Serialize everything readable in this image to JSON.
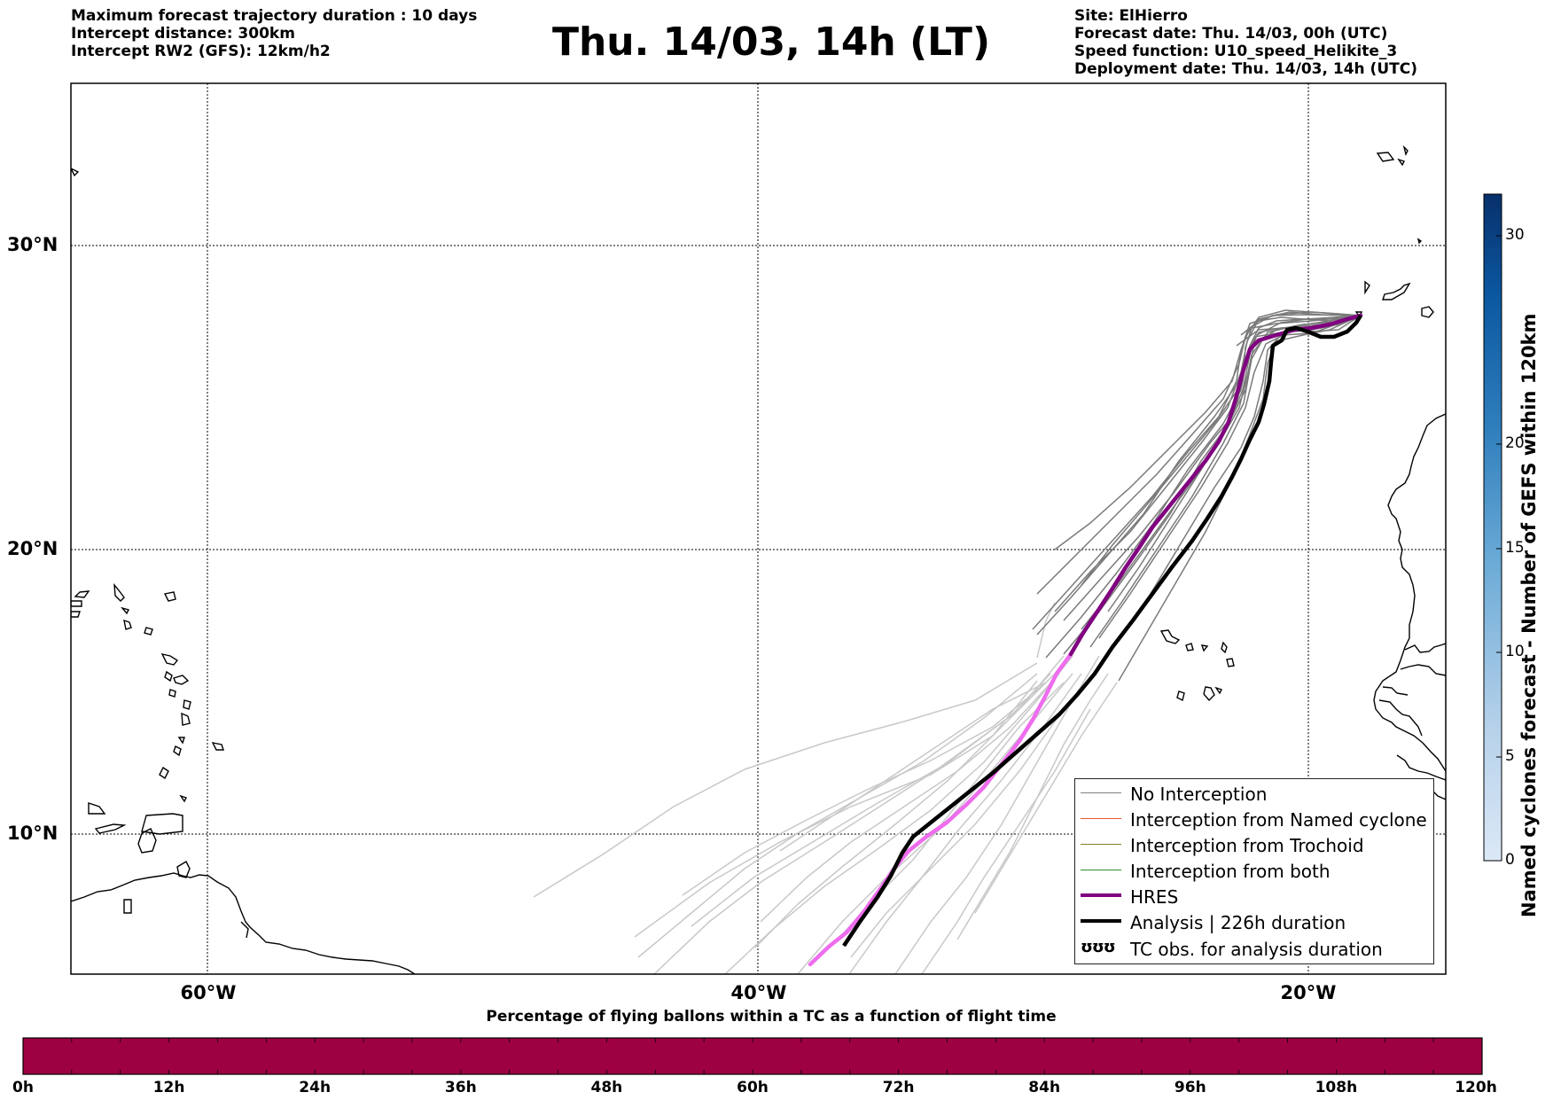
{
  "header_left": [
    "Maximum forecast trajectory duration : 10 days",
    "Intercept distance: 300km",
    "Intercept RW2 (GFS):  12km/h2"
  ],
  "title": "Thu. 14/03, 14h (LT)",
  "header_right": [
    "Site: ElHierro",
    "Forecast date: Thu. 14/03, 00h (UTC)",
    "Speed function: U10_speed_Helikite_3",
    "Deployment date: Thu. 14/03, 14h (UTC)"
  ],
  "map": {
    "lat_labels": [
      "30°N",
      "20°N",
      "10°N"
    ],
    "lon_labels": [
      "60°W",
      "40°W",
      "20°W"
    ]
  },
  "legend": {
    "items": [
      {
        "label": "No Interception",
        "color": "#7f7f7f"
      },
      {
        "label": "Interception from Named cyclone",
        "color": "#e8552a"
      },
      {
        "label": "Interception from Trochoid",
        "color": "#808030"
      },
      {
        "label": "Interception from both",
        "color": "#2e8b2e"
      },
      {
        "label": "HRES",
        "color": "#800080"
      },
      {
        "label": "Analysis | 226h duration",
        "color": "#000000"
      },
      {
        "label": "TC obs. for analysis duration",
        "symbol": "ʊʊʊ"
      }
    ]
  },
  "colorbar": {
    "title": "Named cyclones forecast - Number of GEFS within 120km",
    "ticks": [
      "30",
      "20",
      "15",
      "10",
      "5",
      "0"
    ]
  },
  "tc_bar": {
    "title": "Percentage of flying ballons within a TC as a function of flight time",
    "color": "#9e0142",
    "ticks": [
      "0h",
      "12h",
      "24h",
      "36h",
      "48h",
      "60h",
      "72h",
      "84h",
      "96h",
      "108h",
      "120h"
    ]
  }
}
